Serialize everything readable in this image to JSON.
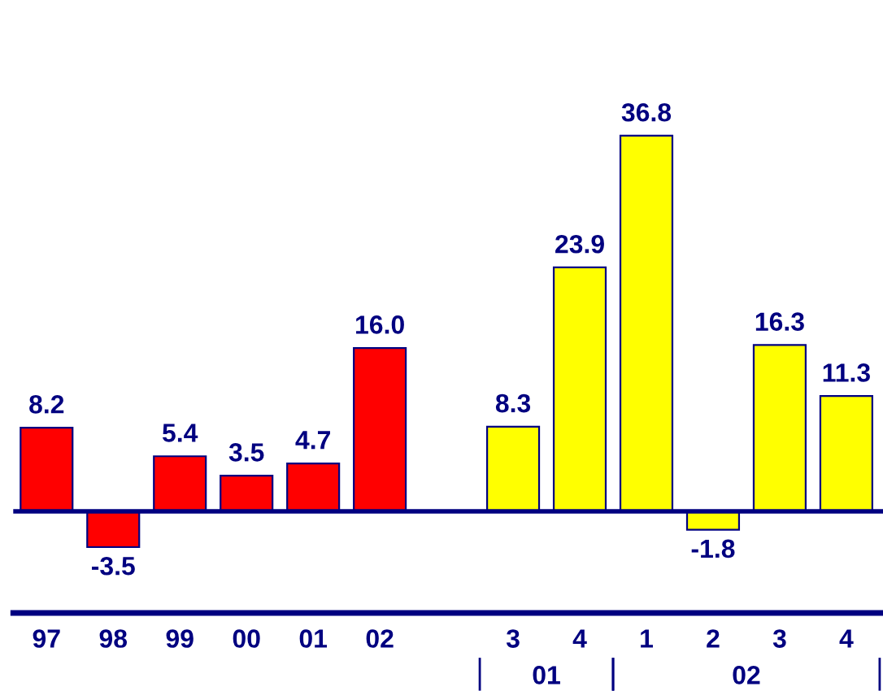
{
  "chart_data": {
    "type": "bar",
    "categories": [
      "97",
      "98",
      "99",
      "00",
      "01",
      "02",
      null,
      "3",
      "4",
      "1",
      "2",
      "3",
      "4"
    ],
    "values": [
      8.2,
      -3.5,
      5.4,
      3.5,
      4.7,
      16.0,
      null,
      8.3,
      23.9,
      36.8,
      -1.8,
      16.3,
      11.3
    ],
    "colors": [
      "#ff0000",
      "#ff0000",
      "#ff0000",
      "#ff0000",
      "#ff0000",
      "#ff0000",
      null,
      "#ffff00",
      "#ffff00",
      "#ffff00",
      "#ffff00",
      "#ffff00",
      "#ffff00"
    ],
    "value_labels": [
      "8.2",
      "-3.5",
      "5.4",
      "3.5",
      "4.7",
      "16.0",
      null,
      "8.3",
      "23.9",
      "36.8",
      "-1.8",
      "16.3",
      "11.3"
    ],
    "annotations": [
      "01",
      "02"
    ],
    "ref_lines": [
      {
        "axis": "y",
        "value": 0,
        "color": "#000080"
      }
    ],
    "grid": false,
    "legend": false
  }
}
